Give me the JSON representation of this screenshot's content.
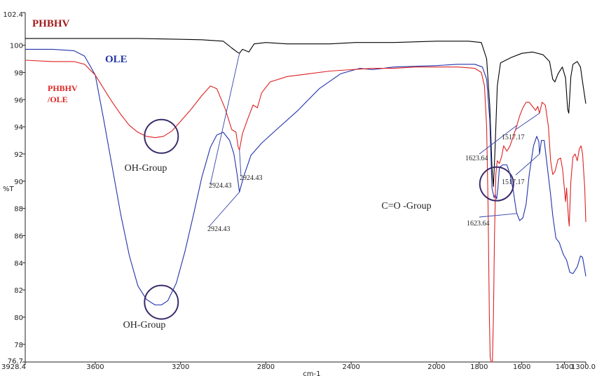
{
  "chart_data": {
    "type": "line",
    "title": "",
    "xlabel": "cm-1",
    "ylabel": "%T",
    "xlim": [
      3928.4,
      1300.0
    ],
    "ylim": [
      76.7,
      102.4
    ],
    "x_reversed": true,
    "grid": false,
    "x_ticks": [
      3928.4,
      3600,
      3200,
      2800,
      2400,
      2000,
      1800,
      1600,
      1400,
      1300.0
    ],
    "x_tick_labels": [
      "3928.4",
      "3600",
      "3200",
      "2800",
      "2400",
      "2000",
      "1800",
      "1600",
      "1400",
      "1300.0"
    ],
    "y_ticks": [
      76.7,
      78,
      80,
      82,
      84,
      86,
      88,
      90,
      92,
      94,
      96,
      98,
      100,
      102.4
    ],
    "y_tick_labels": [
      "76.7",
      "78",
      "80",
      "82",
      "84",
      "86",
      "88",
      "90",
      "92",
      "94",
      "96",
      "98",
      "100",
      "102.4"
    ],
    "series": [
      {
        "name": "PHBHV",
        "label_lines": [
          "PHBHV"
        ],
        "color": "#000000",
        "label_color": "#a01c1c",
        "points": [
          [
            3928.4,
            100.5
          ],
          [
            3800,
            100.5
          ],
          [
            3600,
            100.5
          ],
          [
            3400,
            100.5
          ],
          [
            3100,
            100.4
          ],
          [
            3000,
            100.3
          ],
          [
            2960,
            99.8
          ],
          [
            2935,
            99.5
          ],
          [
            2924,
            99.4
          ],
          [
            2910,
            99.7
          ],
          [
            2880,
            99.5
          ],
          [
            2855,
            100.1
          ],
          [
            2800,
            100.2
          ],
          [
            2700,
            100.1
          ],
          [
            2500,
            100.1
          ],
          [
            2380,
            100.2
          ],
          [
            2300,
            100.2
          ],
          [
            2200,
            100.2
          ],
          [
            2000,
            100.3
          ],
          [
            1850,
            100.3
          ],
          [
            1790,
            100.2
          ],
          [
            1765,
            99.0
          ],
          [
            1750,
            95.5
          ],
          [
            1740,
            91.0
          ],
          [
            1733,
            89.6
          ],
          [
            1725,
            92.5
          ],
          [
            1715,
            97.0
          ],
          [
            1700,
            98.7
          ],
          [
            1650,
            99.1
          ],
          [
            1600,
            99.4
          ],
          [
            1550,
            99.5
          ],
          [
            1500,
            99.3
          ],
          [
            1470,
            98.8
          ],
          [
            1455,
            97.5
          ],
          [
            1445,
            97.3
          ],
          [
            1430,
            97.9
          ],
          [
            1410,
            98.4
          ],
          [
            1395,
            97.6
          ],
          [
            1385,
            95.3
          ],
          [
            1380,
            95.0
          ],
          [
            1370,
            97.7
          ],
          [
            1360,
            98.6
          ],
          [
            1340,
            98.8
          ],
          [
            1325,
            98.4
          ],
          [
            1315,
            97.3
          ],
          [
            1300,
            95.7
          ]
        ]
      },
      {
        "name": "OLE",
        "label_lines": [
          "OLE"
        ],
        "color": "#2233aa",
        "label_color": "#2233aa",
        "points": [
          [
            3928.4,
            99.7
          ],
          [
            3800,
            99.7
          ],
          [
            3700,
            99.6
          ],
          [
            3650,
            99.2
          ],
          [
            3600,
            97.8
          ],
          [
            3560,
            94.5
          ],
          [
            3520,
            91.0
          ],
          [
            3480,
            87.5
          ],
          [
            3440,
            84.5
          ],
          [
            3400,
            82.3
          ],
          [
            3360,
            81.3
          ],
          [
            3320,
            80.9
          ],
          [
            3290,
            80.9
          ],
          [
            3260,
            81.2
          ],
          [
            3220,
            82.5
          ],
          [
            3180,
            84.8
          ],
          [
            3140,
            87.5
          ],
          [
            3100,
            90.3
          ],
          [
            3060,
            92.5
          ],
          [
            3030,
            93.4
          ],
          [
            3000,
            93.6
          ],
          [
            2970,
            93.0
          ],
          [
            2950,
            92.0
          ],
          [
            2935,
            90.5
          ],
          [
            2924,
            89.2
          ],
          [
            2905,
            90.3
          ],
          [
            2870,
            91.9
          ],
          [
            2820,
            92.8
          ],
          [
            2750,
            93.8
          ],
          [
            2650,
            95.2
          ],
          [
            2550,
            96.8
          ],
          [
            2450,
            97.9
          ],
          [
            2360,
            98.3
          ],
          [
            2300,
            98.2
          ],
          [
            2200,
            98.4
          ],
          [
            2000,
            98.5
          ],
          [
            1900,
            98.6
          ],
          [
            1820,
            98.6
          ],
          [
            1785,
            98.4
          ],
          [
            1765,
            97.5
          ],
          [
            1750,
            94.5
          ],
          [
            1740,
            89.5
          ],
          [
            1730,
            88.8
          ],
          [
            1725,
            89.0
          ],
          [
            1718,
            88.7
          ],
          [
            1712,
            89.5
          ],
          [
            1705,
            91.0
          ],
          [
            1690,
            91.2
          ],
          [
            1670,
            91.2
          ],
          [
            1655,
            90.5
          ],
          [
            1640,
            89.3
          ],
          [
            1625,
            87.7
          ],
          [
            1610,
            87.1
          ],
          [
            1595,
            87.3
          ],
          [
            1580,
            88.3
          ],
          [
            1565,
            90.5
          ],
          [
            1545,
            92.6
          ],
          [
            1530,
            93.3
          ],
          [
            1520,
            92.9
          ],
          [
            1517,
            92.0
          ],
          [
            1508,
            93.0
          ],
          [
            1495,
            93.0
          ],
          [
            1480,
            91.0
          ],
          [
            1465,
            89.0
          ],
          [
            1455,
            87.5
          ],
          [
            1440,
            85.8
          ],
          [
            1425,
            85.5
          ],
          [
            1405,
            84.6
          ],
          [
            1390,
            84.2
          ],
          [
            1375,
            83.3
          ],
          [
            1360,
            83.2
          ],
          [
            1340,
            83.7
          ],
          [
            1325,
            84.5
          ],
          [
            1315,
            84.4
          ],
          [
            1305,
            83.5
          ],
          [
            1300,
            83.0
          ]
        ]
      },
      {
        "name": "PHBHV /OLE",
        "label_lines": [
          "PHBHV",
          "/OLE"
        ],
        "color": "#dd2222",
        "label_color": "#dd2222",
        "points": [
          [
            3928.4,
            98.9
          ],
          [
            3800,
            98.8
          ],
          [
            3700,
            98.8
          ],
          [
            3650,
            98.6
          ],
          [
            3600,
            97.8
          ],
          [
            3560,
            96.8
          ],
          [
            3520,
            95.8
          ],
          [
            3480,
            94.9
          ],
          [
            3440,
            94.1
          ],
          [
            3400,
            93.6
          ],
          [
            3360,
            93.3
          ],
          [
            3320,
            93.2
          ],
          [
            3280,
            93.3
          ],
          [
            3240,
            93.7
          ],
          [
            3200,
            94.4
          ],
          [
            3150,
            95.3
          ],
          [
            3100,
            96.3
          ],
          [
            3060,
            97.0
          ],
          [
            3030,
            96.8
          ],
          [
            2990,
            95.3
          ],
          [
            2960,
            93.8
          ],
          [
            2940,
            93.6
          ],
          [
            2930,
            92.5
          ],
          [
            2924,
            92.3
          ],
          [
            2910,
            93.5
          ],
          [
            2880,
            94.8
          ],
          [
            2860,
            95.6
          ],
          [
            2840,
            95.4
          ],
          [
            2820,
            96.5
          ],
          [
            2780,
            97.3
          ],
          [
            2700,
            97.7
          ],
          [
            2600,
            97.9
          ],
          [
            2500,
            98.1
          ],
          [
            2400,
            98.2
          ],
          [
            2300,
            98.3
          ],
          [
            2200,
            98.3
          ],
          [
            2100,
            98.4
          ],
          [
            2000,
            98.4
          ],
          [
            1900,
            98.4
          ],
          [
            1820,
            98.3
          ],
          [
            1790,
            98.0
          ],
          [
            1775,
            97.0
          ],
          [
            1765,
            94.0
          ],
          [
            1758,
            88.0
          ],
          [
            1752,
            80.0
          ],
          [
            1748,
            77.0
          ],
          [
            1743,
            76.7
          ],
          [
            1738,
            76.7
          ],
          [
            1733,
            80.0
          ],
          [
            1728,
            86.0
          ],
          [
            1722,
            90.5
          ],
          [
            1715,
            91.5
          ],
          [
            1705,
            91.3
          ],
          [
            1695,
            91.8
          ],
          [
            1685,
            92.6
          ],
          [
            1670,
            92.2
          ],
          [
            1655,
            92.6
          ],
          [
            1640,
            93.3
          ],
          [
            1625,
            94.0
          ],
          [
            1610,
            94.8
          ],
          [
            1595,
            95.4
          ],
          [
            1580,
            95.8
          ],
          [
            1565,
            95.8
          ],
          [
            1550,
            95.5
          ],
          [
            1535,
            95.2
          ],
          [
            1525,
            95.5
          ],
          [
            1517,
            95.0
          ],
          [
            1505,
            95.8
          ],
          [
            1490,
            95.6
          ],
          [
            1475,
            94.0
          ],
          [
            1465,
            91.5
          ],
          [
            1455,
            90.5
          ],
          [
            1445,
            90.7
          ],
          [
            1430,
            91.6
          ],
          [
            1418,
            91.7
          ],
          [
            1408,
            90.8
          ],
          [
            1395,
            88.5
          ],
          [
            1390,
            89.5
          ],
          [
            1382,
            87.5
          ],
          [
            1378,
            86.7
          ],
          [
            1370,
            90.0
          ],
          [
            1360,
            91.8
          ],
          [
            1350,
            92.0
          ],
          [
            1340,
            91.5
          ],
          [
            1330,
            92.4
          ],
          [
            1322,
            92.6
          ],
          [
            1315,
            92.0
          ],
          [
            1305,
            89.5
          ],
          [
            1300,
            87.0
          ]
        ]
      }
    ],
    "annotations": {
      "peak_labels": [
        {
          "text": "2924.43",
          "series": "PHBHV"
        },
        {
          "text": "2924.43",
          "series": "PHBHV /OLE"
        },
        {
          "text": "2924.43",
          "series": "OLE"
        },
        {
          "text": "1623.64",
          "series": "PHBHV /OLE"
        },
        {
          "text": "1517.17",
          "series": "PHBHV /OLE"
        },
        {
          "text": "1623.64",
          "series": "OLE"
        },
        {
          "text": "1517.17",
          "series": "OLE"
        }
      ],
      "group_labels": [
        {
          "text": "OH-Group",
          "circle_center": [
            3290,
            93.3
          ]
        },
        {
          "text": "OH-Group",
          "circle_center": [
            3290,
            81.1
          ]
        },
        {
          "text": "C=O -Group",
          "circle_center": [
            1718,
            89.8
          ]
        }
      ],
      "circle_color": "#3a2a6a"
    }
  }
}
